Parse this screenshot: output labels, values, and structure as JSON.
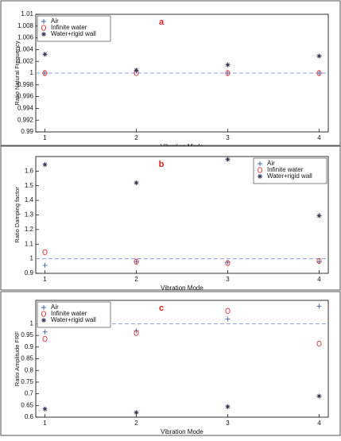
{
  "chart_data": [
    {
      "type": "scatter",
      "label": "a",
      "x_label": "Vibration Mode",
      "y_label": "Ratio Natural Frequency",
      "x": [
        1,
        2,
        3,
        4
      ],
      "xlim": [
        0.9,
        4.1
      ],
      "xticks": [
        1,
        2,
        3,
        4
      ],
      "ylim": [
        0.99,
        1.01
      ],
      "yticks": [
        0.99,
        0.992,
        0.994,
        0.996,
        0.998,
        1,
        1.002,
        1.004,
        1.006,
        1.008,
        1.01
      ],
      "reference_line": 1,
      "legend": "upper-left",
      "series": [
        {
          "name": "Air",
          "marker": "+",
          "color": "#4a5fa8",
          "values": [
            1.0,
            1.0003,
            1.0,
            1.0
          ]
        },
        {
          "name": "Infinite water",
          "marker": "o",
          "color": "#e03030",
          "values": [
            1.0,
            1.0,
            1.0,
            1.0
          ]
        },
        {
          "name": "Water+rigid wall",
          "marker": "*",
          "color": "#333355",
          "values": [
            1.0032,
            1.0005,
            1.0014,
            1.0029
          ]
        }
      ]
    },
    {
      "type": "scatter",
      "label": "b",
      "x_label": "Vibration Mode",
      "y_label": "Ratio Damping factor",
      "x": [
        1,
        2,
        3,
        4
      ],
      "xlim": [
        0.9,
        4.1
      ],
      "xticks": [
        1,
        2,
        3,
        4
      ],
      "ylim": [
        0.9,
        1.7
      ],
      "yticks": [
        0.9,
        1,
        1.1,
        1.2,
        1.3,
        1.4,
        1.5,
        1.6
      ],
      "reference_line": 1,
      "legend": "upper-right",
      "series": [
        {
          "name": "Air",
          "marker": "+",
          "color": "#4a5fa8",
          "values": [
            0.955,
            0.98,
            0.975,
            0.98
          ]
        },
        {
          "name": "Infinite water",
          "marker": "o",
          "color": "#e03030",
          "values": [
            1.045,
            0.98,
            0.97,
            0.985
          ]
        },
        {
          "name": "Water+rigid wall",
          "marker": "*",
          "color": "#333355",
          "values": [
            1.645,
            1.52,
            1.68,
            1.295
          ]
        }
      ]
    },
    {
      "type": "scatter",
      "label": "c",
      "x_label": "Vibration Mode",
      "y_label": "Ratio Amplitude FRF",
      "x": [
        1,
        2,
        3,
        4
      ],
      "xlim": [
        0.9,
        4.1
      ],
      "xticks": [
        1,
        2,
        3,
        4
      ],
      "ylim": [
        0.6,
        1.1
      ],
      "yticks": [
        0.6,
        0.65,
        0.7,
        0.75,
        0.8,
        0.85,
        0.9,
        0.95,
        1
      ],
      "reference_line": 1,
      "legend": "upper-left",
      "series": [
        {
          "name": "Air",
          "marker": "+",
          "color": "#4a5fa8",
          "values": [
            0.965,
            0.97,
            1.02,
            1.075
          ]
        },
        {
          "name": "Infinite water",
          "marker": "o",
          "color": "#e03030",
          "values": [
            0.935,
            0.96,
            1.055,
            0.915
          ]
        },
        {
          "name": "Water+rigid wall",
          "marker": "*",
          "color": "#333355",
          "values": [
            0.635,
            0.62,
            0.645,
            0.69
          ]
        }
      ]
    }
  ]
}
